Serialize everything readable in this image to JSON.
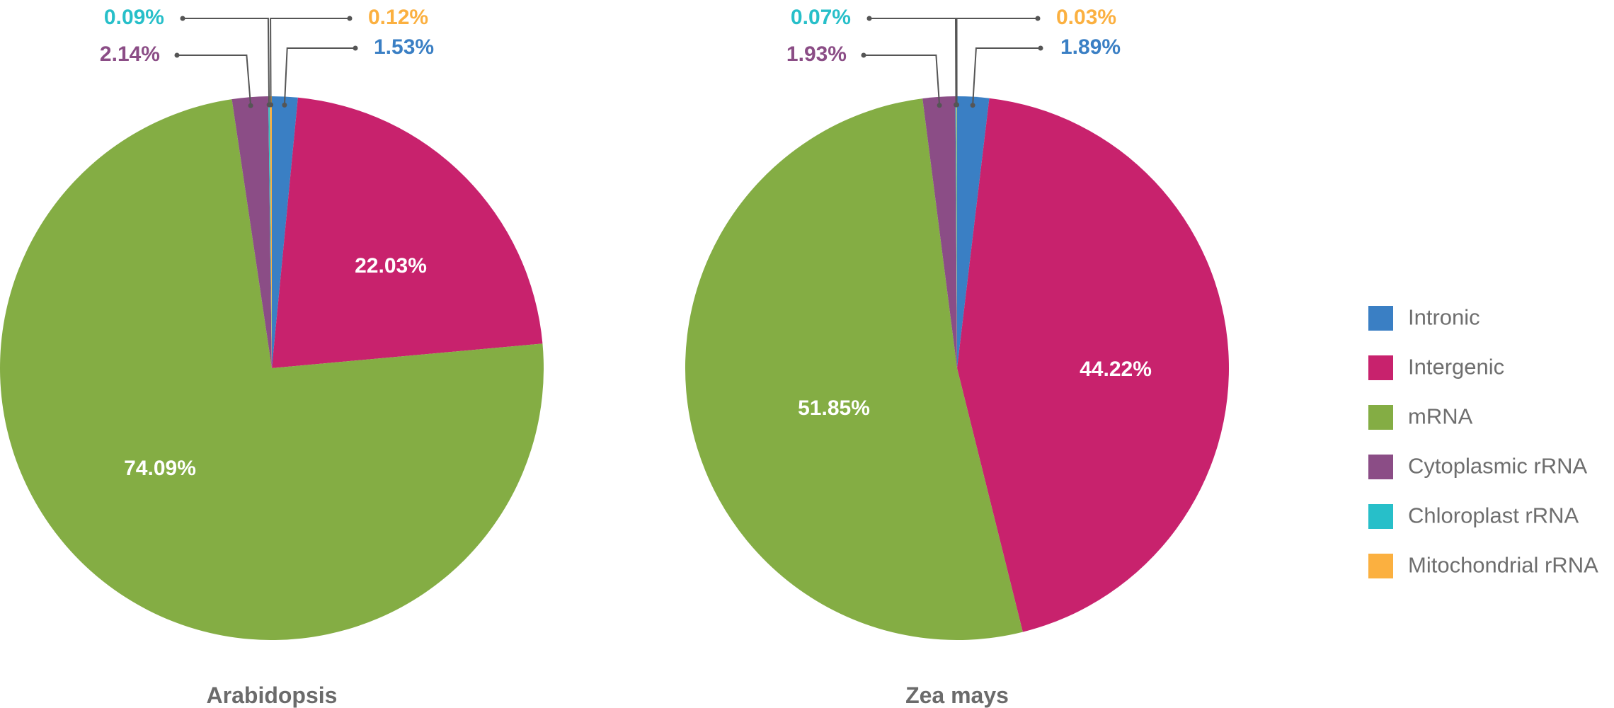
{
  "colors": {
    "Intronic": "#3a7fc4",
    "Intergenic": "#c8226d",
    "mRNA": "#84ad44",
    "Cytoplasmic rRNA": "#8b4d86",
    "Chloroplast rRNA": "#27bfc9",
    "Mitochondrial rRNA": "#fbb040"
  },
  "chart_data": [
    {
      "type": "pie",
      "title": "Arabidopsis",
      "slices": [
        {
          "name": "Intronic",
          "value": 1.53,
          "label": "1.53%"
        },
        {
          "name": "Intergenic",
          "value": 22.03,
          "label": "22.03%"
        },
        {
          "name": "mRNA",
          "value": 74.09,
          "label": "74.09%"
        },
        {
          "name": "Cytoplasmic rRNA",
          "value": 2.14,
          "label": "2.14%"
        },
        {
          "name": "Chloroplast rRNA",
          "value": 0.09,
          "label": "0.09%"
        },
        {
          "name": "Mitochondrial rRNA",
          "value": 0.12,
          "label": "0.12%"
        }
      ],
      "legend_position": "right"
    },
    {
      "type": "pie",
      "title": "Zea mays",
      "slices": [
        {
          "name": "Intronic",
          "value": 1.89,
          "label": "1.89%"
        },
        {
          "name": "Intergenic",
          "value": 44.22,
          "label": "44.22%"
        },
        {
          "name": "mRNA",
          "value": 51.85,
          "label": "51.85%"
        },
        {
          "name": "Cytoplasmic rRNA",
          "value": 1.93,
          "label": "1.93%"
        },
        {
          "name": "Chloroplast rRNA",
          "value": 0.07,
          "label": "0.07%"
        },
        {
          "name": "Mitochondrial rRNA",
          "value": 0.03,
          "label": "0.03%"
        }
      ],
      "legend_position": "right"
    }
  ],
  "legend": [
    "Intronic",
    "Intergenic",
    "mRNA",
    "Cytoplasmic rRNA",
    "Chloroplast rRNA",
    "Mitochondrial rRNA"
  ]
}
